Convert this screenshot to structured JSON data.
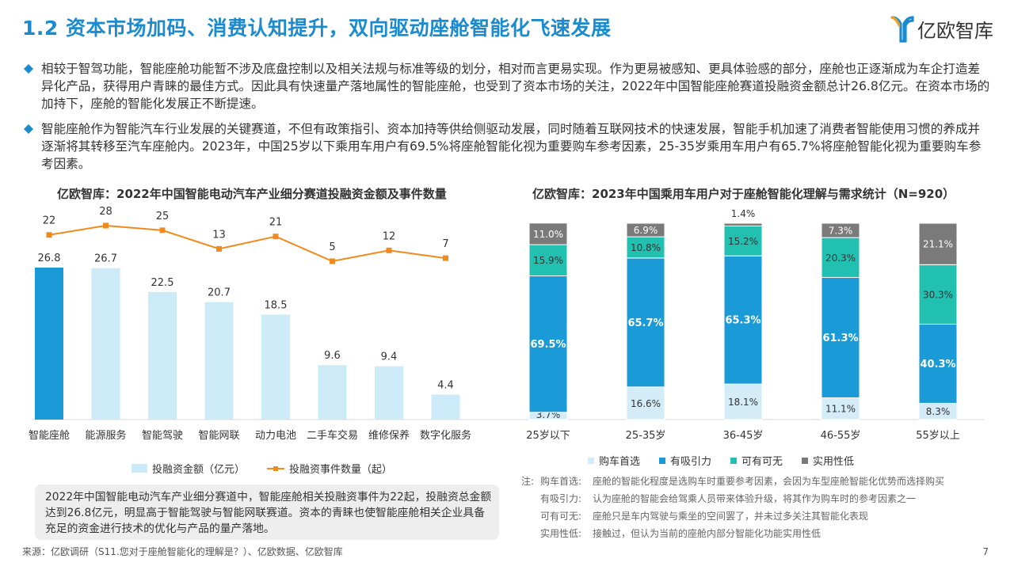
{
  "header": {
    "title": "1.2 资本市场加码、消费认知提升，双向驱动座舱智能化飞速发展",
    "logo_text": "亿欧智库"
  },
  "paragraphs": [
    "相较于智驾功能，智能座舱功能暂不涉及底盘控制以及相关法规与标准等级的划分，相对而言更易实现。作为更易被感知、更具体验感的部分，座舱也正逐渐成为车企打造差异化产品，获得用户青睐的最佳方式。因此具有快速量产落地属性的智能座舱，也受到了资本市场的关注，2022年中国智能座舱赛道投融资金额总计26.8亿元。在资本市场的加持下，座舱的智能化发展正不断提速。",
    "智能座舱作为智能汽车行业发展的关键赛道，不但有政策指引、资本加持等供给侧驱动发展，同时随着互联网技术的快速发展，智能手机加速了消费者智能使用习惯的养成并逐渐将其转移至汽车座舱内。2023年，中国25岁以下乘用车用户有69.5%将座舱智能化视为重要购车参考因素，25-35岁乘用车用户有65.7%将座舱智能化视为重要购车参考因素。"
  ],
  "colors": {
    "title_blue": "#1b8bd0",
    "bar_dark": "#1a9ad6",
    "bar_light": "#cdeaf8",
    "line_orange": "#f08a1c",
    "seg_light": "#d3ecf8",
    "seg_blue": "#1a9ad6",
    "seg_teal": "#21c0b0",
    "seg_gray": "#7a7a7a"
  },
  "chart_data": [
    {
      "type": "bar+line",
      "title": "亿欧智库：2022年中国智能电动汽车产业细分赛道投融资金额及事件数量",
      "categories": [
        "智能座舱",
        "能源服务",
        "智能驾驶",
        "智能网联",
        "动力电池",
        "二手车交易",
        "维修保养",
        "数字化服务"
      ],
      "series": [
        {
          "name": "投融资金额（亿元）",
          "type": "bar",
          "values": [
            26.8,
            26.7,
            22.5,
            20.7,
            18.5,
            9.6,
            9.4,
            4.4
          ]
        },
        {
          "name": "投融资事件数量（起）",
          "type": "line",
          "values": [
            22,
            28,
            25,
            13,
            21,
            5,
            12,
            7
          ]
        }
      ],
      "legend": "bottom"
    },
    {
      "type": "stacked-bar",
      "title": "亿欧智库：2023年中国乘用车用户对于座舱智能化理解与需求统计（N=920）",
      "categories": [
        "25岁以下",
        "25-35岁",
        "36-45岁",
        "46-55岁",
        "55岁以上"
      ],
      "series": [
        {
          "name": "购车首选",
          "values": [
            3.7,
            16.6,
            18.1,
            11.1,
            8.3
          ],
          "labels": [
            "3.7%",
            "16.6%",
            "18.1%",
            "11.1%",
            "8.3%"
          ]
        },
        {
          "name": "有吸引力",
          "values": [
            69.5,
            65.7,
            65.3,
            61.3,
            40.3
          ],
          "labels": [
            "69.5%",
            "65.7%",
            "65.3%",
            "61.3%",
            "40.3%"
          ]
        },
        {
          "name": "可有可无",
          "values": [
            15.9,
            10.8,
            15.2,
            20.3,
            30.3
          ],
          "labels": [
            "15.9%",
            "10.8%",
            "15.2%",
            "20.3%",
            "30.3%"
          ]
        },
        {
          "name": "实用性低",
          "values": [
            11.0,
            6.9,
            1.4,
            7.3,
            21.1
          ],
          "labels": [
            "11.0%",
            "6.9%",
            "1.4%",
            "7.3%",
            "21.1%"
          ]
        }
      ],
      "ylim": [
        0,
        100
      ],
      "legend": "bottom"
    }
  ],
  "summary_box": "2022年中国智能电动汽车产业细分赛道中，智能座舱相关投融资事件为22起，投融资总金额达到26.8亿元，明显高于智能驾驶与智能网联赛道。资本的青睐也使智能座舱相关企业具备充足的资金进行技术的优化与产品的量产落地。",
  "notes": {
    "label": "注:",
    "items": [
      {
        "term": "购车首选:",
        "desc": "座舱的智能化程度是选购车时重要参考因素，会因为车型座舱智能化优势而选择购买"
      },
      {
        "term": "有吸引力:",
        "desc": "认为座舱的智能会给驾乘人员带来体验升级，将其作为购车时的参考因素之一"
      },
      {
        "term": "可有可无:",
        "desc": "座舱只是车内驾驶与乘坐的空间罢了，并未过多关注其智能化表现"
      },
      {
        "term": "实用性低:",
        "desc": "接触过，但认为当前的座舱内部分智能化功能实用性低"
      }
    ]
  },
  "source": "来源：亿欧调研（S11.您对于座舱智能化的理解是？）、亿欧数据、亿欧智库",
  "page_number": "7"
}
